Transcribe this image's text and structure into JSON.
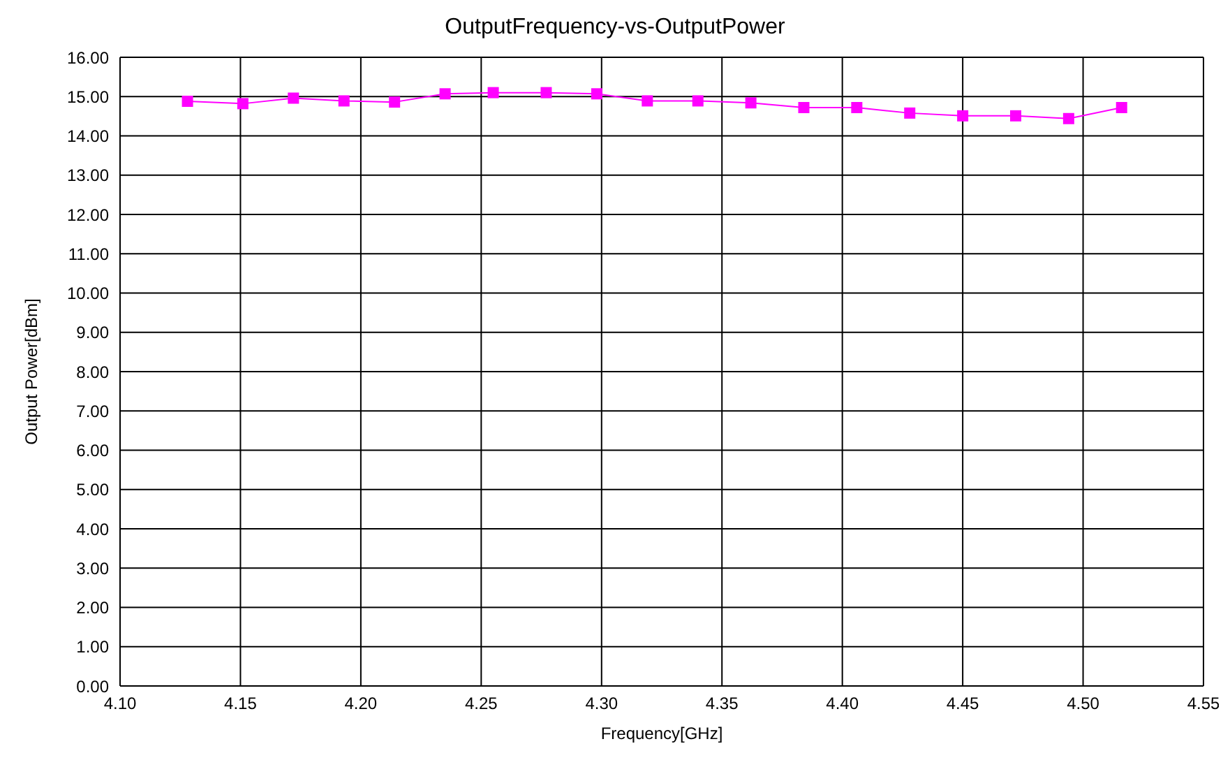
{
  "chart_data": {
    "type": "line",
    "title": "OutputFrequency-vs-OutputPower",
    "xlabel": "Frequency[GHz]",
    "ylabel": "Output Power[dBm]",
    "x": [
      4.128,
      4.151,
      4.172,
      4.193,
      4.214,
      4.235,
      4.255,
      4.277,
      4.298,
      4.319,
      4.34,
      4.362,
      4.384,
      4.406,
      4.428,
      4.45,
      4.472,
      4.494,
      4.516
    ],
    "series": [
      {
        "color": "#ff00ff",
        "values": [
          14.88,
          14.82,
          14.96,
          14.89,
          14.86,
          15.07,
          15.1,
          15.1,
          15.07,
          14.89,
          14.89,
          14.84,
          14.72,
          14.72,
          14.58,
          14.51,
          14.51,
          14.44,
          14.72
        ]
      }
    ],
    "xlim": [
      4.1,
      4.55
    ],
    "xticks": [
      {
        "value": 4.1,
        "label": "4.10"
      },
      {
        "value": 4.15,
        "label": "4.15"
      },
      {
        "value": 4.2,
        "label": "4.20"
      },
      {
        "value": 4.25,
        "label": "4.25"
      },
      {
        "value": 4.3,
        "label": "4.30"
      },
      {
        "value": 4.35,
        "label": "4.35"
      },
      {
        "value": 4.4,
        "label": "4.40"
      },
      {
        "value": 4.45,
        "label": "4.45"
      },
      {
        "value": 4.5,
        "label": "4.50"
      },
      {
        "value": 4.55,
        "label": "4.55"
      }
    ],
    "ylim": [
      0,
      16
    ],
    "yticks": [
      {
        "value": 0,
        "label": "0.00"
      },
      {
        "value": 1,
        "label": "1.00"
      },
      {
        "value": 2,
        "label": "2.00"
      },
      {
        "value": 3,
        "label": "3.00"
      },
      {
        "value": 4,
        "label": "4.00"
      },
      {
        "value": 5,
        "label": "5.00"
      },
      {
        "value": 6,
        "label": "6.00"
      },
      {
        "value": 7,
        "label": "7.00"
      },
      {
        "value": 8,
        "label": "8.00"
      },
      {
        "value": 9,
        "label": "9.00"
      },
      {
        "value": 10,
        "label": "10.00"
      },
      {
        "value": 11,
        "label": "11.00"
      },
      {
        "value": 12,
        "label": "12.00"
      },
      {
        "value": 13,
        "label": "13.00"
      },
      {
        "value": 14,
        "label": "14.00"
      },
      {
        "value": 15,
        "label": "15.00"
      },
      {
        "value": 16,
        "label": "16.00"
      }
    ],
    "grid": true,
    "legend": false,
    "marker": "square",
    "line_style": "solid"
  }
}
